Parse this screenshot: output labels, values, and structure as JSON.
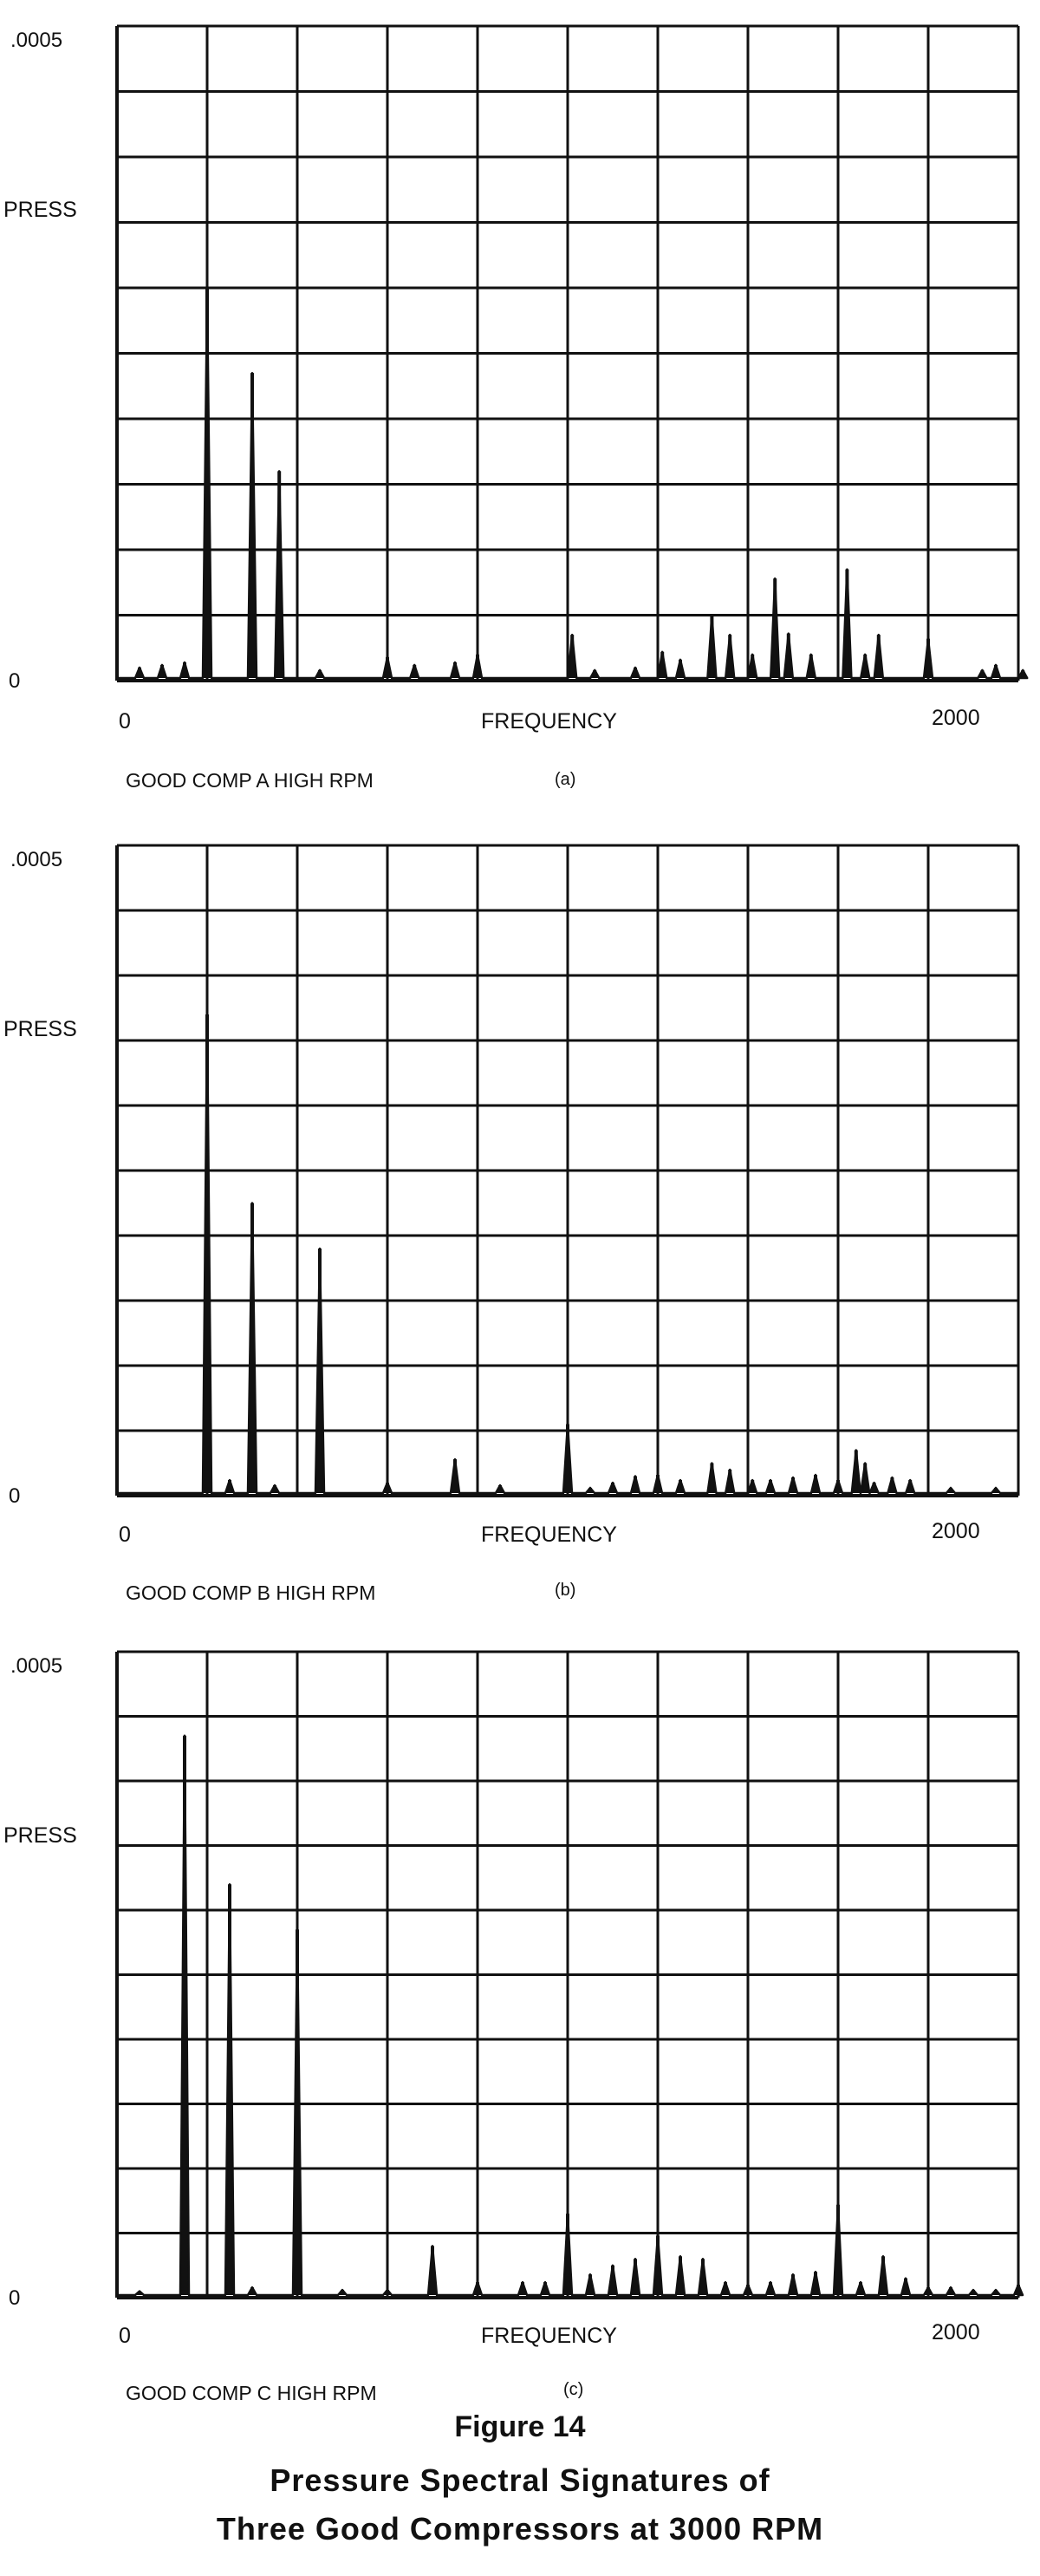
{
  "figure": {
    "number": "Figure 14",
    "caption_line1": "Pressure Spectral Signatures of",
    "caption_line2": "Three Good Compressors at 3000 RPM"
  },
  "chart_data": [
    {
      "type": "line",
      "panel_label": "(a)",
      "legend_text": "GOOD COMP A HIGH RPM",
      "title": "",
      "xlabel": "FREQUENCY",
      "ylabel": "PRESS",
      "x_tick_labels": [
        "0",
        "2000"
      ],
      "y_tick_labels": [
        "0",
        ".0005"
      ],
      "xlim": [
        0,
        2000
      ],
      "ylim": [
        0,
        0.0005
      ],
      "grid": true,
      "series": [
        {
          "x": [
            50,
            100,
            150,
            200,
            300,
            360,
            450,
            600,
            660,
            750,
            800,
            1010,
            1060,
            1150,
            1210,
            1250,
            1320,
            1360,
            1410,
            1460,
            1490,
            1540,
            1620,
            1660,
            1690,
            1800,
            1920,
            1950,
            2010
          ],
          "y": [
            1e-05,
            1.2e-05,
            1.4e-05,
            0.0003,
            0.000235,
            0.00016,
            8e-06,
            1.8e-05,
            1.2e-05,
            1.4e-05,
            2e-05,
            3.5e-05,
            8e-06,
            1e-05,
            2.2e-05,
            1.6e-05,
            5e-05,
            3.5e-05,
            2e-05,
            7.8e-05,
            3.6e-05,
            2e-05,
            8.5e-05,
            2e-05,
            3.5e-05,
            3.2e-05,
            8e-06,
            1.2e-05,
            8e-06
          ]
        }
      ]
    },
    {
      "type": "line",
      "panel_label": "(b)",
      "legend_text": "GOOD COMP B HIGH RPM",
      "title": "",
      "xlabel": "FREQUENCY",
      "ylabel": "PRESS",
      "x_tick_labels": [
        "0",
        "2000"
      ],
      "y_tick_labels": [
        "0",
        ".0005"
      ],
      "xlim": [
        0,
        2000
      ],
      "ylim": [
        0,
        0.0005
      ],
      "grid": true,
      "series": [
        {
          "x": [
            200,
            250,
            300,
            350,
            450,
            600,
            750,
            850,
            1000,
            1050,
            1100,
            1150,
            1200,
            1250,
            1320,
            1360,
            1410,
            1450,
            1500,
            1550,
            1600,
            1640,
            1660,
            1680,
            1720,
            1760,
            1850,
            1950
          ],
          "y": [
            0.00037,
            1.2e-05,
            0.000225,
            8e-06,
            0.00019,
            1e-05,
            2.8e-05,
            8e-06,
            5.5e-05,
            6e-06,
            1e-05,
            1.5e-05,
            1.6e-05,
            1.2e-05,
            2.5e-05,
            2e-05,
            1.2e-05,
            1.2e-05,
            1.4e-05,
            1.6e-05,
            1.2e-05,
            3.5e-05,
            2.5e-05,
            1e-05,
            1.4e-05,
            1.2e-05,
            6e-06,
            6e-06
          ]
        }
      ]
    },
    {
      "type": "line",
      "panel_label": "(c)",
      "legend_text": "GOOD COMP C HIGH RPM",
      "title": "",
      "xlabel": "FREQUENCY",
      "ylabel": "PRESS",
      "x_tick_labels": [
        "0",
        "2000"
      ],
      "y_tick_labels": [
        "0",
        ".0005"
      ],
      "xlim": [
        0,
        2000
      ],
      "ylim": [
        0,
        0.0005
      ],
      "grid": true,
      "series": [
        {
          "x": [
            50,
            150,
            250,
            300,
            400,
            500,
            600,
            700,
            800,
            900,
            950,
            1000,
            1050,
            1100,
            1150,
            1200,
            1250,
            1300,
            1350,
            1400,
            1450,
            1500,
            1550,
            1600,
            1650,
            1700,
            1750,
            1800,
            1850,
            1900,
            1950,
            2000
          ],
          "y": [
            5e-06,
            0.000435,
            0.00032,
            8e-06,
            0.000285,
            6e-06,
            6e-06,
            4e-05,
            1.2e-05,
            1.2e-05,
            1.2e-05,
            6.5e-05,
            1.8e-05,
            2.5e-05,
            3e-05,
            4.8e-05,
            3.2e-05,
            3e-05,
            1.2e-05,
            1e-05,
            1.2e-05,
            1.8e-05,
            2e-05,
            7.2e-05,
            1.2e-05,
            3.2e-05,
            1.5e-05,
            8e-06,
            8e-06,
            6e-06,
            6e-06,
            1e-05
          ]
        }
      ]
    }
  ]
}
